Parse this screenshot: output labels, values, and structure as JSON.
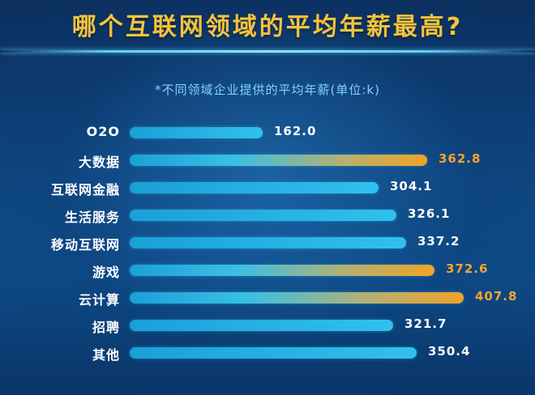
{
  "chart_data": {
    "type": "bar",
    "orientation": "horizontal",
    "title": "哪个互联网领域的平均年薪最高?",
    "subtitle": "*不同领域企业提供的平均年薪(单位:k)",
    "unit": "k",
    "categories": [
      "O2O",
      "大数据",
      "互联网金融",
      "生活服务",
      "移动互联网",
      "游戏",
      "云计算",
      "招聘",
      "其他"
    ],
    "values": [
      162.0,
      362.8,
      304.1,
      326.1,
      337.2,
      372.6,
      407.8,
      321.7,
      350.4
    ],
    "value_labels": [
      "162.0",
      "362.8",
      "304.1",
      "326.1",
      "337.2",
      "372.6",
      "407.8",
      "321.7",
      "350.4"
    ],
    "highlighted": [
      false,
      true,
      false,
      false,
      false,
      true,
      true,
      false,
      false
    ],
    "xlim": [
      0,
      407.8
    ],
    "colors": {
      "title": "#f6c33a",
      "subtitle": "#7fd4f4",
      "bar": "#31c1ee",
      "highlight": "#f0a326",
      "background": "#0e4680"
    }
  }
}
